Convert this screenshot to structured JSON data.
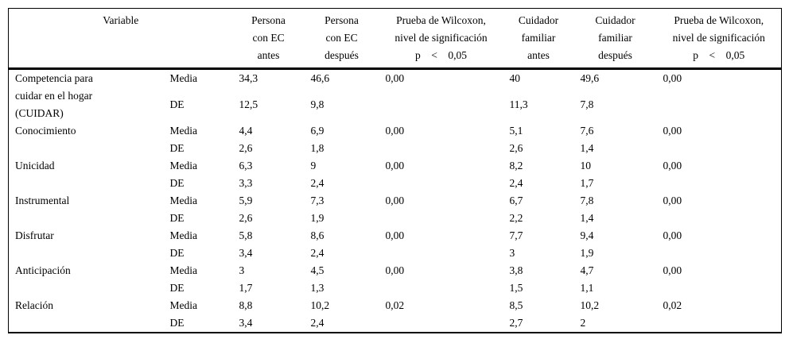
{
  "page": {
    "background": "#ffffff",
    "text_color": "#000000",
    "rule_color": "#000000"
  },
  "table": {
    "header": {
      "variable": "Variable",
      "cols": [
        {
          "lines": [
            "Persona",
            "con EC",
            "antes"
          ]
        },
        {
          "lines": [
            "Persona",
            "con EC",
            "después"
          ]
        },
        {
          "lines": [
            "Prueba de Wilcoxon,",
            "nivel de significación",
            "p < 0,05"
          ]
        },
        {
          "lines": [
            "Cuidador",
            "familiar",
            "antes"
          ]
        },
        {
          "lines": [
            "Cuidador",
            "familiar",
            "después"
          ]
        },
        {
          "lines": [
            "Prueba de Wilcoxon,",
            "nivel de significación",
            "p < 0,05"
          ]
        }
      ]
    },
    "labels": {
      "media": "Media",
      "de": "DE"
    },
    "rows": [
      {
        "variable_lines": [
          "Competencia para",
          "cuidar en el hogar",
          "(CUIDAR)"
        ],
        "media": [
          "34,3",
          "46,6",
          "0,00",
          "40",
          "49,6",
          "0,00"
        ],
        "de": [
          "12,5",
          "9,8",
          "",
          "11,3",
          "7,8",
          ""
        ]
      },
      {
        "variable_lines": [
          "Conocimiento"
        ],
        "media": [
          "4,4",
          "6,9",
          "0,00",
          "5,1",
          "7,6",
          "0,00"
        ],
        "de": [
          "2,6",
          "1,8",
          "",
          "2,6",
          "1,4",
          ""
        ]
      },
      {
        "variable_lines": [
          "Unicidad"
        ],
        "media": [
          "6,3",
          "9",
          "0,00",
          "8,2",
          "10",
          "0,00"
        ],
        "de": [
          "3,3",
          "2,4",
          "",
          "2,4",
          "1,7",
          ""
        ]
      },
      {
        "variable_lines": [
          "Instrumental"
        ],
        "media": [
          "5,9",
          "7,3",
          "0,00",
          "6,7",
          "7,8",
          "0,00"
        ],
        "de": [
          "2,6",
          "1,9",
          "",
          "2,2",
          "1,4",
          ""
        ]
      },
      {
        "variable_lines": [
          "Disfrutar"
        ],
        "media": [
          "5,8",
          "8,6",
          "0,00",
          "7,7",
          "9,4",
          "0,00"
        ],
        "de": [
          "3,4",
          "2,4",
          "",
          "3",
          "1,9",
          ""
        ]
      },
      {
        "variable_lines": [
          "Anticipación"
        ],
        "media": [
          "3",
          "4,5",
          "0,00",
          "3,8",
          "4,7",
          "0,00"
        ],
        "de": [
          "1,7",
          "1,3",
          "",
          "1,5",
          "1,1",
          ""
        ]
      },
      {
        "variable_lines": [
          "Relación"
        ],
        "media": [
          "8,8",
          "10,2",
          "0,02",
          "8,5",
          "10,2",
          "0,02"
        ],
        "de": [
          "3,4",
          "2,4",
          "",
          "2,7",
          "2",
          ""
        ]
      }
    ]
  }
}
